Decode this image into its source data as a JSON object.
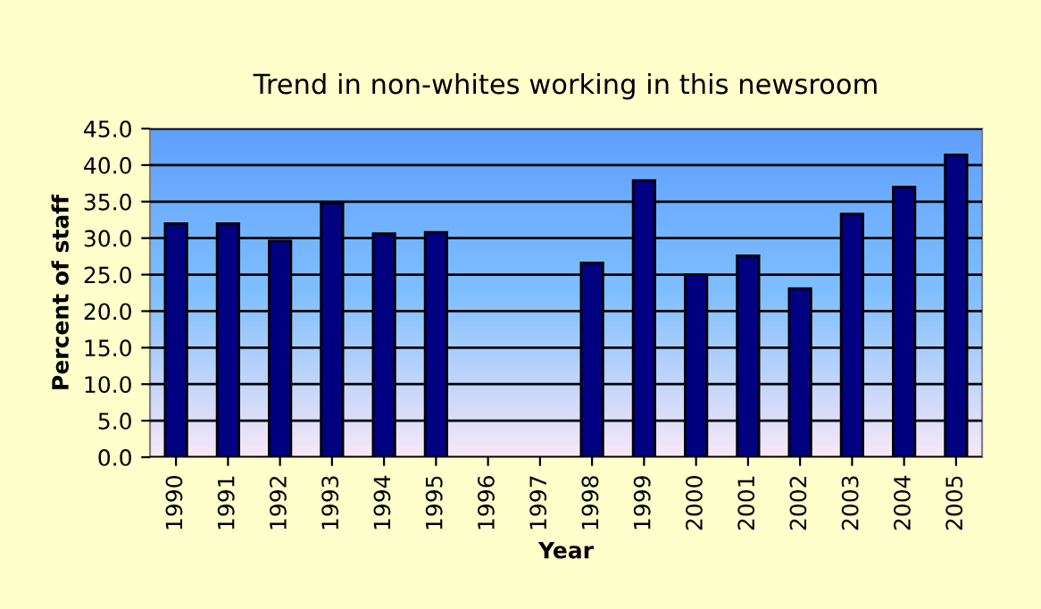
{
  "chart_data": {
    "type": "bar",
    "title": "Trend in non-whites working in this newsroom",
    "xlabel": "Year",
    "ylabel": "Percent of staff",
    "categories": [
      "1990",
      "1991",
      "1992",
      "1993",
      "1994",
      "1995",
      "1996",
      "1997",
      "1998",
      "1999",
      "2000",
      "2001",
      "2002",
      "2003",
      "2004",
      "2005"
    ],
    "values": [
      32.0,
      32.0,
      29.6,
      34.8,
      30.6,
      30.8,
      null,
      null,
      26.6,
      37.9,
      25.0,
      27.6,
      23.1,
      33.3,
      37.0,
      41.4
    ],
    "color": "#000080",
    "ylim": [
      0,
      45
    ],
    "yticks": [
      {
        "value": 0,
        "label": "0.0"
      },
      {
        "value": 5,
        "label": "5.0"
      },
      {
        "value": 10,
        "label": "10.0"
      },
      {
        "value": 15,
        "label": "15.0"
      },
      {
        "value": 20,
        "label": "20.0"
      },
      {
        "value": 25,
        "label": "25.0"
      },
      {
        "value": 30,
        "label": "30.0"
      },
      {
        "value": 35,
        "label": "35.0"
      },
      {
        "value": 40,
        "label": "40.0"
      },
      {
        "value": 45,
        "label": "45.0"
      }
    ],
    "grid": "y",
    "legend": false
  }
}
